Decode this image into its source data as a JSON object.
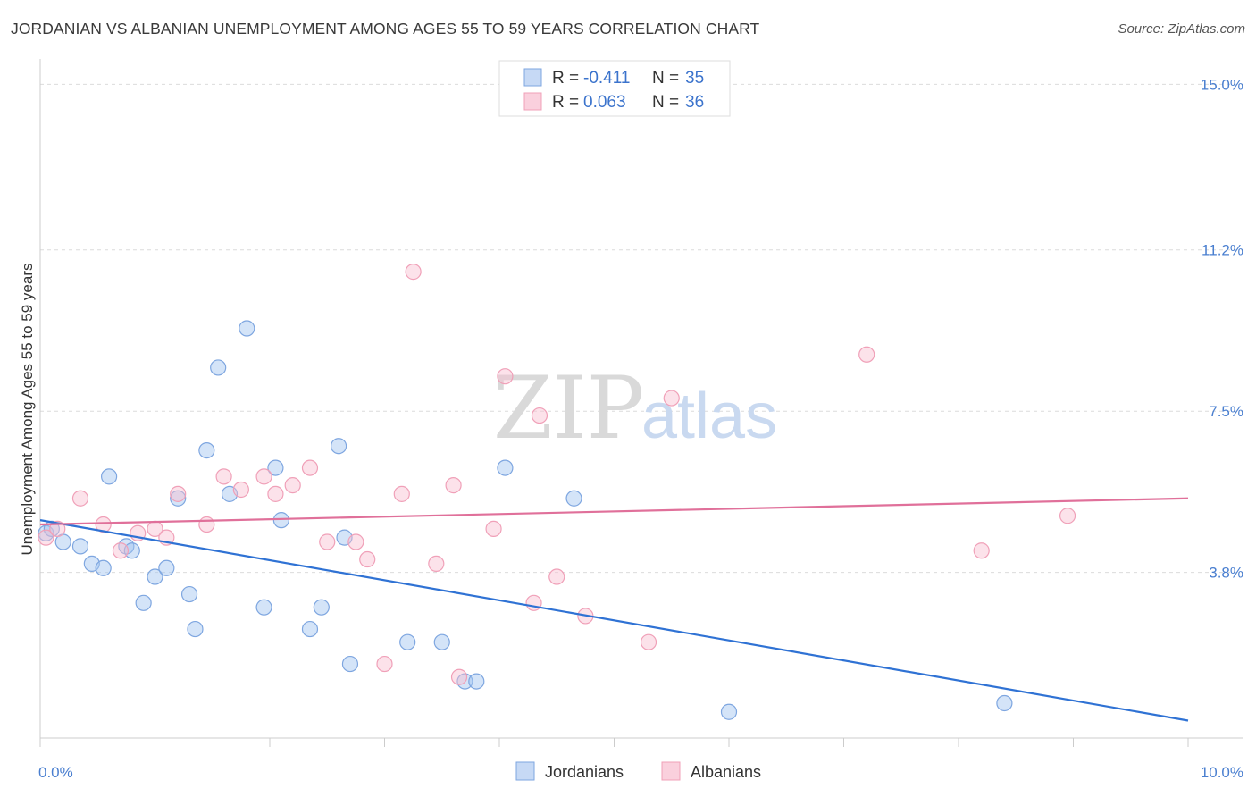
{
  "header": {
    "title": "JORDANIAN VS ALBANIAN UNEMPLOYMENT AMONG AGES 55 TO 59 YEARS CORRELATION CHART",
    "source": "Source: ZipAtlas.com"
  },
  "watermark": {
    "zip": "ZIP",
    "atlas": "atlas"
  },
  "legend_top": [
    {
      "r_label": "R = ",
      "r_value": "-0.411",
      "n_label": "N = ",
      "n_value": "35"
    },
    {
      "r_label": "R = ",
      "r_value": "0.063",
      "n_label": "N = ",
      "n_value": "36"
    }
  ],
  "chart_data": {
    "type": "scatter",
    "title": "JORDANIAN VS ALBANIAN UNEMPLOYMENT AMONG AGES 55 TO 59 YEARS CORRELATION CHART",
    "xlabel": "",
    "ylabel": "Unemployment Among Ages 55 to 59 years",
    "xlim": [
      0,
      10
    ],
    "ylim": [
      0,
      15.5
    ],
    "x_tick_labels": [
      "0.0%",
      "10.0%"
    ],
    "y_ticks": [
      3.8,
      7.5,
      11.2,
      15.0
    ],
    "y_tick_labels": [
      "3.8%",
      "7.5%",
      "11.2%",
      "15.0%"
    ],
    "grid": true,
    "legend_placement": "bottom-center",
    "colors": {
      "Jordanians": "#6b9de0",
      "Albanians": "#f09cb5",
      "Jordanians_line": "#2f72d4",
      "Albanians_line": "#e0709a"
    },
    "series": [
      {
        "name": "Jordanians",
        "r": -0.411,
        "n": 35,
        "trend": [
          [
            0,
            5.0
          ],
          [
            10,
            0.4
          ]
        ],
        "points": [
          [
            0.05,
            4.7
          ],
          [
            0.2,
            4.5
          ],
          [
            0.35,
            4.4
          ],
          [
            0.45,
            4.0
          ],
          [
            0.55,
            3.9
          ],
          [
            0.6,
            6.0
          ],
          [
            0.75,
            4.4
          ],
          [
            0.8,
            4.3
          ],
          [
            0.9,
            3.1
          ],
          [
            1.0,
            3.7
          ],
          [
            1.1,
            3.9
          ],
          [
            1.2,
            5.5
          ],
          [
            1.3,
            3.3
          ],
          [
            1.35,
            2.5
          ],
          [
            1.45,
            6.6
          ],
          [
            1.55,
            8.5
          ],
          [
            1.65,
            5.6
          ],
          [
            1.8,
            9.4
          ],
          [
            1.95,
            3.0
          ],
          [
            2.05,
            6.2
          ],
          [
            2.1,
            5.0
          ],
          [
            2.35,
            2.5
          ],
          [
            2.45,
            3.0
          ],
          [
            2.6,
            6.7
          ],
          [
            2.65,
            4.6
          ],
          [
            2.7,
            1.7
          ],
          [
            3.2,
            2.2
          ],
          [
            3.5,
            2.2
          ],
          [
            3.7,
            1.3
          ],
          [
            3.8,
            1.3
          ],
          [
            4.05,
            6.2
          ],
          [
            4.65,
            5.5
          ],
          [
            6.0,
            0.6
          ],
          [
            8.4,
            0.8
          ],
          [
            0.1,
            4.8
          ]
        ]
      },
      {
        "name": "Albanians",
        "r": 0.063,
        "n": 36,
        "trend": [
          [
            0,
            4.9
          ],
          [
            10,
            5.5
          ]
        ],
        "points": [
          [
            0.05,
            4.6
          ],
          [
            0.15,
            4.8
          ],
          [
            0.35,
            5.5
          ],
          [
            0.55,
            4.9
          ],
          [
            0.7,
            4.3
          ],
          [
            0.85,
            4.7
          ],
          [
            1.0,
            4.8
          ],
          [
            1.1,
            4.6
          ],
          [
            1.2,
            5.6
          ],
          [
            1.45,
            4.9
          ],
          [
            1.6,
            6.0
          ],
          [
            1.75,
            5.7
          ],
          [
            1.95,
            6.0
          ],
          [
            2.05,
            5.6
          ],
          [
            2.2,
            5.8
          ],
          [
            2.35,
            6.2
          ],
          [
            2.5,
            4.5
          ],
          [
            2.75,
            4.5
          ],
          [
            2.85,
            4.1
          ],
          [
            3.0,
            1.7
          ],
          [
            3.15,
            5.6
          ],
          [
            3.25,
            10.7
          ],
          [
            3.45,
            4.0
          ],
          [
            3.6,
            5.8
          ],
          [
            3.65,
            1.4
          ],
          [
            3.95,
            4.8
          ],
          [
            4.05,
            8.3
          ],
          [
            4.3,
            3.1
          ],
          [
            4.35,
            7.4
          ],
          [
            4.5,
            3.7
          ],
          [
            4.75,
            2.8
          ],
          [
            5.3,
            2.2
          ],
          [
            5.5,
            7.8
          ],
          [
            7.2,
            8.8
          ],
          [
            8.2,
            4.3
          ],
          [
            8.95,
            5.1
          ]
        ]
      }
    ]
  },
  "bottom_legend": [
    "Jordanians",
    "Albanians"
  ]
}
